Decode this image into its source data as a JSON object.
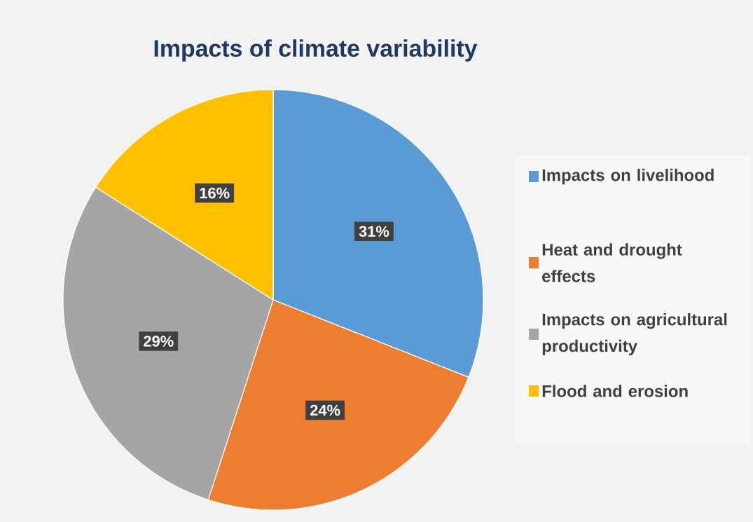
{
  "chart_data": {
    "type": "pie",
    "title": "Impacts of climate variability",
    "categories": [
      "Impacts on livelihood",
      "Heat and drought effects",
      "Impacts on agricultural productivity",
      "Flood and erosion"
    ],
    "values": [
      31,
      24,
      29,
      16
    ],
    "colors": [
      "#5b9bd5",
      "#ed7d31",
      "#a5a5a5",
      "#ffc000"
    ],
    "value_labels": [
      "31%",
      "24%",
      "29%",
      "16%"
    ],
    "legend": "right"
  }
}
